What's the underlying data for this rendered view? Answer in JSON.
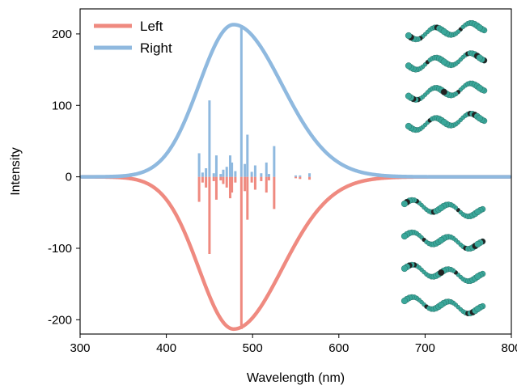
{
  "chart_data": {
    "type": "line",
    "title": "",
    "xlabel": "Wavelength (nm)",
    "ylabel": "Intensity",
    "xlim": [
      300,
      800
    ],
    "ylim": [
      -220,
      235
    ],
    "xticks": [
      300,
      400,
      500,
      600,
      700,
      800
    ],
    "yticks": [
      -200,
      -100,
      0,
      100,
      200
    ],
    "legend_position": "top-left",
    "grid": false,
    "series": [
      {
        "name": "Left",
        "color": "#ef8a80",
        "envelope": {
          "center": 478,
          "peak": -213,
          "sigma_left": 40,
          "sigma_right": 56,
          "x_start": 302,
          "x_end": 798
        },
        "sticks": [
          {
            "x": 438,
            "y": -35
          },
          {
            "x": 442,
            "y": -8
          },
          {
            "x": 446,
            "y": -15
          },
          {
            "x": 450,
            "y": -108
          },
          {
            "x": 455,
            "y": -6
          },
          {
            "x": 458,
            "y": -32
          },
          {
            "x": 463,
            "y": -5
          },
          {
            "x": 466,
            "y": -10
          },
          {
            "x": 470,
            "y": -15
          },
          {
            "x": 474,
            "y": -30
          },
          {
            "x": 476,
            "y": -22
          },
          {
            "x": 480,
            "y": -8
          },
          {
            "x": 487,
            "y": -213
          },
          {
            "x": 491,
            "y": -20
          },
          {
            "x": 494,
            "y": -60
          },
          {
            "x": 499,
            "y": -8
          },
          {
            "x": 503,
            "y": -18
          },
          {
            "x": 510,
            "y": -6
          },
          {
            "x": 516,
            "y": -22
          },
          {
            "x": 519,
            "y": -5
          },
          {
            "x": 525,
            "y": -45
          },
          {
            "x": 550,
            "y": -2
          },
          {
            "x": 555,
            "y": -3
          },
          {
            "x": 566,
            "y": -4
          }
        ]
      },
      {
        "name": "Right",
        "color": "#8fb9df",
        "envelope": {
          "center": 478,
          "peak": 213,
          "sigma_left": 40,
          "sigma_right": 56,
          "x_start": 302,
          "x_end": 798
        },
        "sticks": [
          {
            "x": 438,
            "y": 33
          },
          {
            "x": 442,
            "y": 6
          },
          {
            "x": 446,
            "y": 12
          },
          {
            "x": 450,
            "y": 107
          },
          {
            "x": 455,
            "y": 5
          },
          {
            "x": 458,
            "y": 30
          },
          {
            "x": 463,
            "y": 4
          },
          {
            "x": 466,
            "y": 10
          },
          {
            "x": 470,
            "y": 14
          },
          {
            "x": 474,
            "y": 30
          },
          {
            "x": 476,
            "y": 20
          },
          {
            "x": 480,
            "y": 8
          },
          {
            "x": 487,
            "y": 212
          },
          {
            "x": 491,
            "y": 18
          },
          {
            "x": 494,
            "y": 59
          },
          {
            "x": 499,
            "y": 7
          },
          {
            "x": 503,
            "y": 16
          },
          {
            "x": 510,
            "y": 5
          },
          {
            "x": 516,
            "y": 20
          },
          {
            "x": 519,
            "y": 4
          },
          {
            "x": 525,
            "y": 43
          },
          {
            "x": 550,
            "y": 2
          },
          {
            "x": 555,
            "y": 2
          },
          {
            "x": 566,
            "y": 5
          }
        ]
      }
    ],
    "insets": [
      {
        "name": "right-handed-helix-molecule-image",
        "position": "top-right",
        "atom_color": "#3aa79a",
        "end_atom_color": "#222222"
      },
      {
        "name": "left-handed-helix-molecule-image",
        "position": "bottom-right",
        "atom_color": "#3aa79a",
        "end_atom_color": "#222222"
      }
    ]
  }
}
